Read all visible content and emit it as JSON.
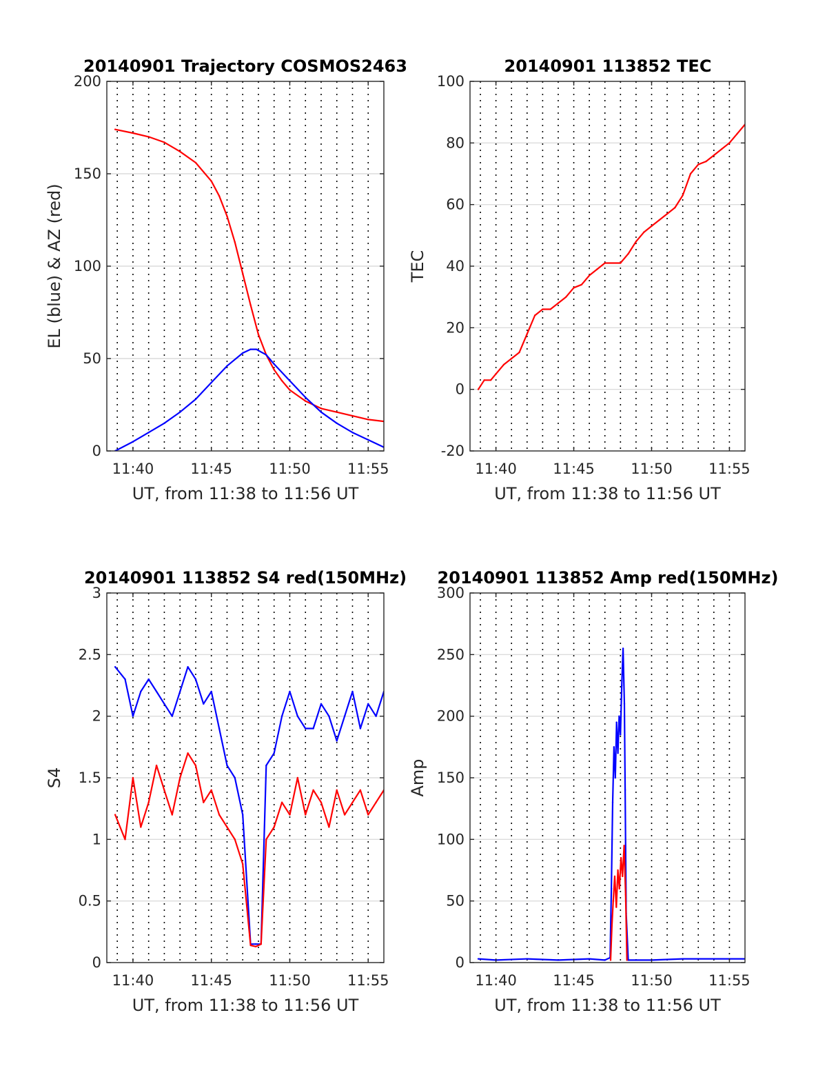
{
  "chart_data": [
    {
      "id": "traj",
      "type": "line",
      "title": "20140901 Trajectory COSMOS2463",
      "xlabel": "UT, from 11:38 to 11:56 UT",
      "ylabel": "EL (blue) & AZ (red)",
      "xlim": [
        "11:38:20",
        "11:56:00"
      ],
      "ylim": [
        0,
        200
      ],
      "yticks": [
        0,
        50,
        100,
        150,
        200
      ],
      "xticks": [
        "11:40",
        "11:45",
        "11:50",
        "11:55"
      ],
      "grid": true,
      "series": [
        {
          "color": "#ff0000",
          "x": [
            "11:38:52",
            "11:40:00",
            "11:41:00",
            "11:42:00",
            "11:43:00",
            "11:44:00",
            "11:45:00",
            "11:45:30",
            "11:46:00",
            "11:46:30",
            "11:47:00",
            "11:47:30",
            "11:48:00",
            "11:48:30",
            "11:49:00",
            "11:49:30",
            "11:50:00",
            "11:51:00",
            "11:52:00",
            "11:53:00",
            "11:54:00",
            "11:55:00",
            "11:56:00"
          ],
          "y": [
            174,
            172,
            170,
            167,
            162,
            156,
            146,
            138,
            127,
            113,
            96,
            79,
            63,
            52,
            44,
            38,
            33,
            27,
            23,
            21,
            19,
            17,
            16
          ]
        },
        {
          "color": "#0000ff",
          "x": [
            "11:38:52",
            "11:40:00",
            "11:41:00",
            "11:42:00",
            "11:43:00",
            "11:44:00",
            "11:45:00",
            "11:46:00",
            "11:47:00",
            "11:47:30",
            "11:47:52",
            "11:48:30",
            "11:49:00",
            "11:50:00",
            "11:51:00",
            "11:52:00",
            "11:53:00",
            "11:54:00",
            "11:55:00",
            "11:56:00"
          ],
          "y": [
            0,
            5,
            10,
            15,
            21,
            28,
            37,
            46,
            53,
            55,
            55,
            52,
            47,
            38,
            29,
            21,
            15,
            10,
            6,
            2
          ]
        }
      ]
    },
    {
      "id": "tec",
      "type": "line",
      "title": "20140901 113852 TEC",
      "xlabel": "UT, from 11:38 to 11:56 UT",
      "ylabel": "TEC",
      "xlim": [
        "11:38:20",
        "11:56:00"
      ],
      "ylim": [
        -20,
        100
      ],
      "yticks": [
        -20,
        0,
        20,
        40,
        60,
        80,
        100
      ],
      "xticks": [
        "11:40",
        "11:45",
        "11:50",
        "11:55"
      ],
      "grid": true,
      "series": [
        {
          "color": "#ff0000",
          "x": [
            "11:38:52",
            "11:39:15",
            "11:39:40",
            "11:40:00",
            "11:40:30",
            "11:41:00",
            "11:41:30",
            "11:42:00",
            "11:42:30",
            "11:43:00",
            "11:43:30",
            "11:44:00",
            "11:44:30",
            "11:45:00",
            "11:45:30",
            "11:46:00",
            "11:46:30",
            "11:47:00",
            "11:48:00",
            "11:48:30",
            "11:49:00",
            "11:49:30",
            "11:50:00",
            "11:50:30",
            "11:51:00",
            "11:51:30",
            "11:52:00",
            "11:52:30",
            "11:53:00",
            "11:53:30",
            "11:54:00",
            "11:54:30",
            "11:55:00",
            "11:55:30",
            "11:56:00"
          ],
          "y": [
            0,
            3,
            3,
            5,
            8,
            10,
            12,
            18,
            24,
            26,
            26,
            28,
            30,
            33,
            34,
            37,
            39,
            41,
            41,
            44,
            48,
            51,
            53,
            55,
            57,
            59,
            63,
            70,
            73,
            74,
            76,
            78,
            80,
            83,
            86
          ]
        }
      ]
    },
    {
      "id": "s4",
      "type": "line",
      "title": "20140901 113852 S4 red(150MHz)",
      "xlabel": "UT, from 11:38 to 11:56 UT",
      "ylabel": "S4",
      "xlim": [
        "11:38:20",
        "11:56:00"
      ],
      "ylim": [
        0,
        3
      ],
      "yticks": [
        0,
        0.5,
        1,
        1.5,
        2,
        2.5,
        3
      ],
      "ytick_labels": [
        "0",
        "0.5",
        "1",
        "1.5",
        "2",
        "2.5",
        "3"
      ],
      "xticks": [
        "11:40",
        "11:45",
        "11:50",
        "11:55"
      ],
      "grid": true,
      "series": [
        {
          "color": "#0000ff",
          "x": [
            "11:38:52",
            "11:39:30",
            "11:40:00",
            "11:40:30",
            "11:41:00",
            "11:41:30",
            "11:42:00",
            "11:42:30",
            "11:43:00",
            "11:43:30",
            "11:44:00",
            "11:44:30",
            "11:45:00",
            "11:45:30",
            "11:46:00",
            "11:46:30",
            "11:47:00",
            "11:47:30",
            "11:47:50",
            "11:48:10",
            "11:48:30",
            "11:49:00",
            "11:49:30",
            "11:50:00",
            "11:50:30",
            "11:51:00",
            "11:51:30",
            "11:52:00",
            "11:52:30",
            "11:53:00",
            "11:53:30",
            "11:54:00",
            "11:54:30",
            "11:55:00",
            "11:55:30",
            "11:56:00"
          ],
          "y": [
            2.4,
            2.3,
            2.0,
            2.2,
            2.3,
            2.2,
            2.1,
            2.0,
            2.2,
            2.4,
            2.3,
            2.1,
            2.2,
            1.9,
            1.6,
            1.5,
            1.2,
            0.15,
            0.15,
            0.15,
            1.6,
            1.7,
            2.0,
            2.2,
            2.0,
            1.9,
            1.9,
            2.1,
            2.0,
            1.8,
            2.0,
            2.2,
            1.9,
            2.1,
            2.0,
            2.2
          ]
        },
        {
          "color": "#ff0000",
          "x": [
            "11:38:52",
            "11:39:30",
            "11:40:00",
            "11:40:30",
            "11:41:00",
            "11:41:30",
            "11:42:00",
            "11:42:30",
            "11:43:00",
            "11:43:30",
            "11:44:00",
            "11:44:30",
            "11:45:00",
            "11:45:30",
            "11:46:00",
            "11:46:30",
            "11:47:00",
            "11:47:30",
            "11:47:50",
            "11:48:10",
            "11:48:30",
            "11:49:00",
            "11:49:30",
            "11:50:00",
            "11:50:30",
            "11:51:00",
            "11:51:30",
            "11:52:00",
            "11:52:30",
            "11:53:00",
            "11:53:30",
            "11:54:00",
            "11:54:30",
            "11:55:00",
            "11:55:30",
            "11:56:00"
          ],
          "y": [
            1.2,
            1.0,
            1.5,
            1.1,
            1.3,
            1.6,
            1.4,
            1.2,
            1.5,
            1.7,
            1.6,
            1.3,
            1.4,
            1.2,
            1.1,
            1.0,
            0.8,
            0.14,
            0.13,
            0.15,
            1.0,
            1.1,
            1.3,
            1.2,
            1.5,
            1.2,
            1.4,
            1.3,
            1.1,
            1.4,
            1.2,
            1.3,
            1.4,
            1.2,
            1.3,
            1.4
          ]
        }
      ]
    },
    {
      "id": "amp",
      "type": "line",
      "title": "20140901 113852 Amp red(150MHz)",
      "xlabel": "UT, from 11:38 to 11:56 UT",
      "ylabel": "Amp",
      "xlim": [
        "11:38:20",
        "11:56:00"
      ],
      "ylim": [
        0,
        300
      ],
      "yticks": [
        0,
        50,
        100,
        150,
        200,
        250,
        300
      ],
      "xticks": [
        "11:40",
        "11:45",
        "11:50",
        "11:55"
      ],
      "grid": true,
      "series": [
        {
          "color": "#0000ff",
          "x": [
            "11:38:52",
            "11:40:00",
            "11:42:00",
            "11:44:00",
            "11:46:00",
            "11:47:00",
            "11:47:20",
            "11:47:25",
            "11:47:30",
            "11:47:35",
            "11:47:40",
            "11:47:45",
            "11:47:50",
            "11:47:55",
            "11:48:00",
            "11:48:05",
            "11:48:10",
            "11:48:15",
            "11:48:18",
            "11:48:22",
            "11:48:30",
            "11:49:00",
            "11:50:00",
            "11:52:00",
            "11:54:00",
            "11:56:00"
          ],
          "y": [
            3,
            2,
            3,
            2,
            3,
            2,
            4,
            60,
            130,
            175,
            150,
            195,
            170,
            200,
            185,
            225,
            255,
            210,
            140,
            40,
            2,
            2,
            2,
            3,
            3,
            3
          ]
        },
        {
          "color": "#ff0000",
          "x": [
            "11:47:22",
            "11:47:27",
            "11:47:32",
            "11:47:38",
            "11:47:44",
            "11:47:50",
            "11:47:56",
            "11:48:02",
            "11:48:08",
            "11:48:14",
            "11:48:20",
            "11:48:25"
          ],
          "y": [
            2,
            30,
            50,
            70,
            45,
            75,
            60,
            85,
            70,
            95,
            55,
            2
          ]
        }
      ]
    }
  ]
}
